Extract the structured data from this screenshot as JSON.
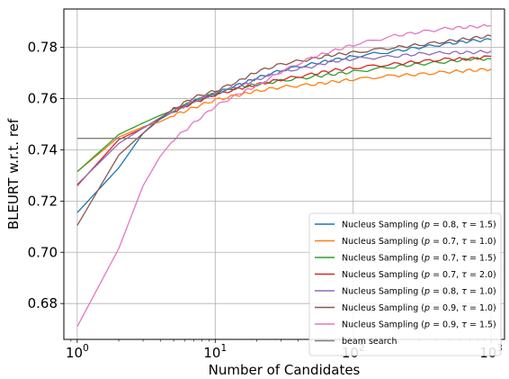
{
  "chart_data": {
    "type": "line",
    "title": "",
    "xlabel": "Number of Candidates",
    "ylabel": "BLEURT w.r.t. ref",
    "xscale": "log",
    "xlim": [
      0.8,
      1250
    ],
    "ylim": [
      0.666,
      0.795
    ],
    "grid": true,
    "legend_position": "lower right",
    "x_ticks": [
      {
        "value": 1,
        "base": "10",
        "exp": "0"
      },
      {
        "value": 10,
        "base": "10",
        "exp": "1"
      },
      {
        "value": 100,
        "base": "10",
        "exp": "2"
      },
      {
        "value": 1000,
        "base": "10",
        "exp": "3"
      }
    ],
    "y_ticks": [
      {
        "value": 0.68,
        "label": "0.68"
      },
      {
        "value": 0.7,
        "label": "0.70"
      },
      {
        "value": 0.72,
        "label": "0.72"
      },
      {
        "value": 0.74,
        "label": "0.74"
      },
      {
        "value": 0.76,
        "label": "0.76"
      },
      {
        "value": 0.78,
        "label": "0.78"
      }
    ],
    "x": [
      1,
      2,
      3,
      4,
      5,
      7,
      10,
      15,
      20,
      30,
      50,
      70,
      100,
      200,
      300,
      500,
      700,
      1000
    ],
    "series": [
      {
        "name": "Nucleus Sampling (p = 0.8, τ = 1.5)",
        "p": "0.8",
        "tau": "1.5",
        "color": "#1f77b4",
        "values": [
          0.7155,
          0.733,
          0.7465,
          0.752,
          0.755,
          0.759,
          0.762,
          0.7655,
          0.768,
          0.771,
          0.7735,
          0.775,
          0.7765,
          0.7785,
          0.78,
          0.7815,
          0.7825,
          0.783
        ]
      },
      {
        "name": "Nucleus Sampling (p = 0.7, τ = 1.0)",
        "p": "0.7",
        "tau": "1.0",
        "color": "#ff7f0e",
        "values": [
          0.7315,
          0.745,
          0.749,
          0.751,
          0.7535,
          0.7565,
          0.7595,
          0.7615,
          0.763,
          0.7645,
          0.7655,
          0.7665,
          0.7675,
          0.769,
          0.7695,
          0.7705,
          0.771,
          0.7715
        ]
      },
      {
        "name": "Nucleus Sampling (p = 0.7, τ = 1.5)",
        "p": "0.7",
        "tau": "1.5",
        "color": "#2ca02c",
        "values": [
          0.7315,
          0.746,
          0.7505,
          0.7535,
          0.7555,
          0.759,
          0.762,
          0.7645,
          0.7655,
          0.767,
          0.7685,
          0.7695,
          0.7705,
          0.7725,
          0.7735,
          0.7745,
          0.7755,
          0.7755
        ]
      },
      {
        "name": "Nucleus Sampling (p = 0.7, τ = 2.0)",
        "p": "0.7",
        "tau": "2.0",
        "color": "#d62728",
        "values": [
          0.726,
          0.744,
          0.7485,
          0.7525,
          0.755,
          0.7585,
          0.7615,
          0.764,
          0.7655,
          0.7675,
          0.7695,
          0.771,
          0.772,
          0.7735,
          0.7745,
          0.7755,
          0.7755,
          0.7765
        ]
      },
      {
        "name": "Nucleus Sampling (p = 0.8, τ = 1.0)",
        "p": "0.8",
        "tau": "1.0",
        "color": "#9467bd",
        "values": [
          0.7265,
          0.7425,
          0.7485,
          0.7525,
          0.755,
          0.759,
          0.762,
          0.765,
          0.7675,
          0.7705,
          0.7725,
          0.7745,
          0.7755,
          0.7765,
          0.7775,
          0.778,
          0.778,
          0.7785
        ]
      },
      {
        "name": "Nucleus Sampling (p = 0.9, τ = 1.0)",
        "p": "0.9",
        "tau": "1.0",
        "color": "#8c564b",
        "values": [
          0.7105,
          0.738,
          0.7465,
          0.7525,
          0.756,
          0.7605,
          0.763,
          0.767,
          0.7705,
          0.7735,
          0.7755,
          0.777,
          0.778,
          0.78,
          0.781,
          0.7825,
          0.7835,
          0.7845
        ]
      },
      {
        "name": "Nucleus Sampling (p = 0.9, τ = 1.5)",
        "p": "0.9",
        "tau": "1.5",
        "color": "#e377c2",
        "values": [
          0.671,
          0.7015,
          0.726,
          0.7375,
          0.744,
          0.7505,
          0.757,
          0.762,
          0.765,
          0.7705,
          0.776,
          0.7785,
          0.781,
          0.7845,
          0.786,
          0.7875,
          0.788,
          0.7885
        ]
      },
      {
        "name": "beam search",
        "color": "#7f7f7f",
        "values": [
          0.7445,
          0.7445,
          0.7445,
          0.7445,
          0.7445,
          0.7445,
          0.7445,
          0.7445,
          0.7445,
          0.7445,
          0.7445,
          0.7445,
          0.7445,
          0.7445,
          0.7445,
          0.7445,
          0.7445,
          0.7445
        ]
      }
    ]
  }
}
